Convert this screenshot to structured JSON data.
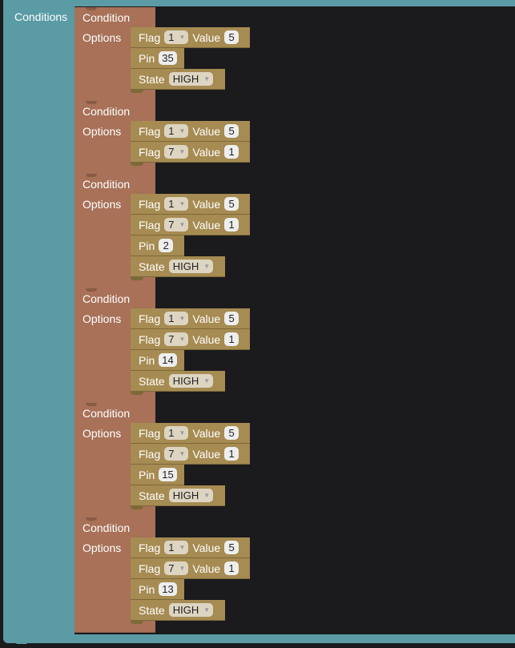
{
  "outer_label": "Conditions",
  "conditions": [
    {
      "title": "Condition",
      "options_label": "Options",
      "blocks": [
        {
          "type": "flag",
          "flag_label": "Flag",
          "flag": "1",
          "value_label": "Value",
          "value": "5"
        },
        {
          "type": "pin",
          "label": "Pin",
          "value": "35"
        },
        {
          "type": "state",
          "label": "State",
          "value": "HIGH"
        }
      ]
    },
    {
      "title": "Condition",
      "options_label": "Options",
      "blocks": [
        {
          "type": "flag",
          "flag_label": "Flag",
          "flag": "1",
          "value_label": "Value",
          "value": "5"
        },
        {
          "type": "flag",
          "flag_label": "Flag",
          "flag": "7",
          "value_label": "Value",
          "value": "1"
        }
      ]
    },
    {
      "title": "Condition",
      "options_label": "Options",
      "blocks": [
        {
          "type": "flag",
          "flag_label": "Flag",
          "flag": "1",
          "value_label": "Value",
          "value": "5"
        },
        {
          "type": "flag",
          "flag_label": "Flag",
          "flag": "7",
          "value_label": "Value",
          "value": "1"
        },
        {
          "type": "pin",
          "label": "Pin",
          "value": "2"
        },
        {
          "type": "state",
          "label": "State",
          "value": "HIGH"
        }
      ]
    },
    {
      "title": "Condition",
      "options_label": "Options",
      "blocks": [
        {
          "type": "flag",
          "flag_label": "Flag",
          "flag": "1",
          "value_label": "Value",
          "value": "5"
        },
        {
          "type": "flag",
          "flag_label": "Flag",
          "flag": "7",
          "value_label": "Value",
          "value": "1"
        },
        {
          "type": "pin",
          "label": "Pin",
          "value": "14"
        },
        {
          "type": "state",
          "label": "State",
          "value": "HIGH"
        }
      ]
    },
    {
      "title": "Condition",
      "options_label": "Options",
      "blocks": [
        {
          "type": "flag",
          "flag_label": "Flag",
          "flag": "1",
          "value_label": "Value",
          "value": "5"
        },
        {
          "type": "flag",
          "flag_label": "Flag",
          "flag": "7",
          "value_label": "Value",
          "value": "1"
        },
        {
          "type": "pin",
          "label": "Pin",
          "value": "15"
        },
        {
          "type": "state",
          "label": "State",
          "value": "HIGH"
        }
      ]
    },
    {
      "title": "Condition",
      "options_label": "Options",
      "blocks": [
        {
          "type": "flag",
          "flag_label": "Flag",
          "flag": "1",
          "value_label": "Value",
          "value": "5"
        },
        {
          "type": "flag",
          "flag_label": "Flag",
          "flag": "7",
          "value_label": "Value",
          "value": "1"
        },
        {
          "type": "pin",
          "label": "Pin",
          "value": "13"
        },
        {
          "type": "state",
          "label": "State",
          "value": "HIGH"
        }
      ]
    }
  ]
}
